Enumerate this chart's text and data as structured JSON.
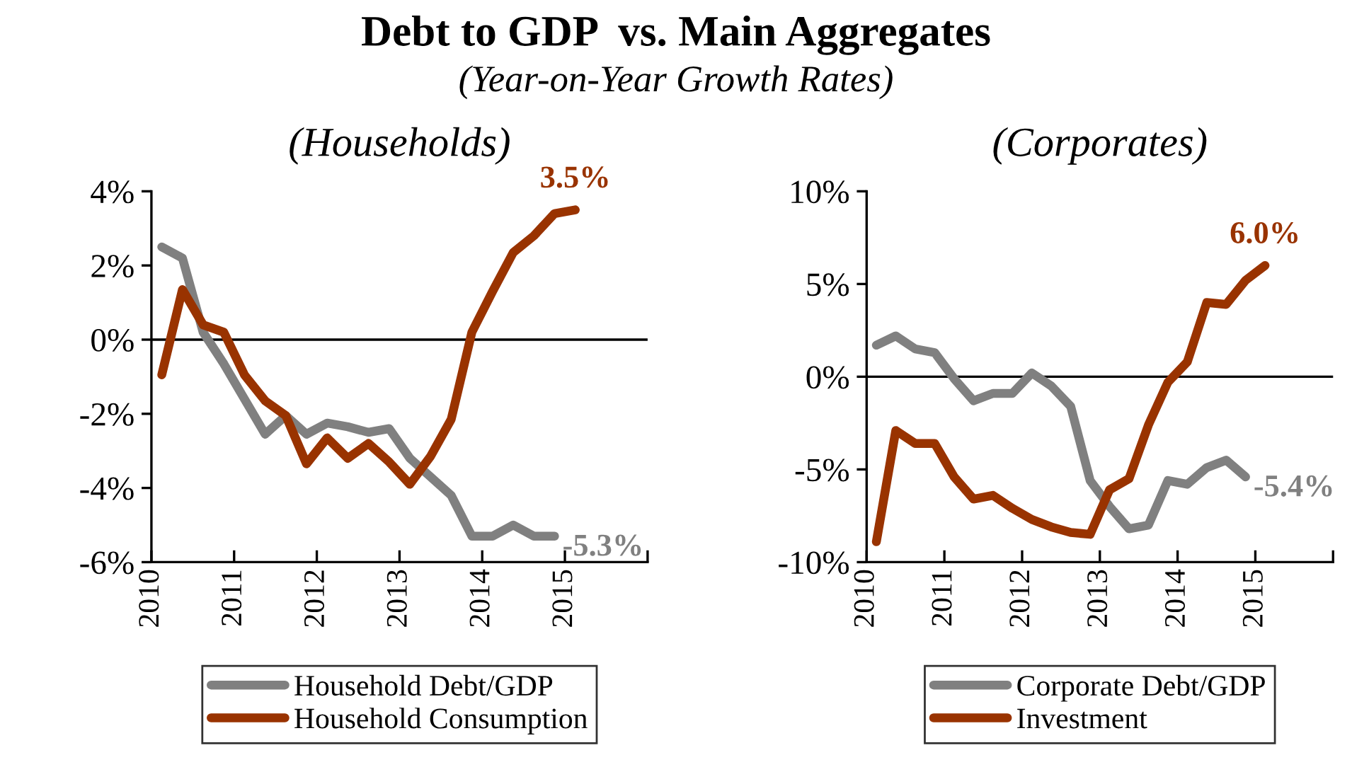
{
  "chart_data": [
    {
      "type": "line",
      "title": "(Households)",
      "annotations": [
        "Debt to GDP  vs. Main Aggregates",
        "(Year-on-Year Growth Rates)"
      ],
      "xlim": [
        2010,
        2016
      ],
      "xticks": [
        2010,
        2011,
        2012,
        2013,
        2014,
        2015,
        {
          "value": 2016,
          "label": null
        }
      ],
      "ylim": [
        -6,
        4
      ],
      "yticks": [
        {
          "value": -6,
          "label": "-6%"
        },
        {
          "value": -4,
          "label": "-4%"
        },
        {
          "value": -2,
          "label": "-2%"
        },
        {
          "value": 0,
          "label": "0%"
        },
        {
          "value": 2,
          "label": "2%"
        },
        {
          "value": 4,
          "label": "4%"
        }
      ],
      "ref_lines": [
        {
          "axis": "y",
          "value": 0,
          "color": "#000000"
        }
      ],
      "legend": "bottom",
      "grid": false,
      "marker": "none",
      "line_style": "solid",
      "series": [
        {
          "name": "Household Debt/GDP",
          "color": "#808080",
          "x": [
            2010.125,
            2010.375,
            2010.625,
            2010.875,
            2011.125,
            2011.375,
            2011.625,
            2011.875,
            2012.125,
            2012.375,
            2012.625,
            2012.875,
            2013.125,
            2013.375,
            2013.625,
            2013.875,
            2014.125,
            2014.375,
            2014.625,
            2014.875
          ],
          "values": [
            2.5,
            2.2,
            0.2,
            -0.65,
            -1.6,
            -2.55,
            -2.05,
            -2.55,
            -2.25,
            -2.35,
            -2.5,
            -2.4,
            -3.2,
            -3.7,
            -4.2,
            -5.3,
            -5.3,
            -5.0,
            -5.3,
            -5.3
          ],
          "value_labels": [
            null,
            null,
            null,
            null,
            null,
            null,
            null,
            null,
            null,
            null,
            null,
            null,
            null,
            null,
            null,
            null,
            null,
            null,
            null,
            "-5.3%"
          ]
        },
        {
          "name": "Household Consumption",
          "color": "#993300",
          "x": [
            2010.125,
            2010.375,
            2010.625,
            2010.875,
            2011.125,
            2011.375,
            2011.625,
            2011.875,
            2012.125,
            2012.375,
            2012.625,
            2012.875,
            2013.125,
            2013.375,
            2013.625,
            2013.875,
            2014.125,
            2014.375,
            2014.625,
            2014.875,
            2015.125
          ],
          "values": [
            -0.95,
            1.35,
            0.4,
            0.2,
            -0.95,
            -1.65,
            -2.05,
            -3.35,
            -2.65,
            -3.2,
            -2.8,
            -3.3,
            -3.9,
            -3.15,
            -2.15,
            0.2,
            1.3,
            2.35,
            2.8,
            3.4,
            3.5
          ],
          "value_labels": [
            null,
            null,
            null,
            null,
            null,
            null,
            null,
            null,
            null,
            null,
            null,
            null,
            null,
            null,
            null,
            null,
            null,
            null,
            null,
            null,
            "3.5%"
          ]
        }
      ]
    },
    {
      "type": "line",
      "title": "(Corporates)",
      "xlim": [
        2010,
        2016
      ],
      "xticks": [
        2010,
        2011,
        2012,
        2013,
        2014,
        2015,
        {
          "value": 2016,
          "label": null
        }
      ],
      "ylim": [
        -10,
        10
      ],
      "yticks": [
        {
          "value": -10,
          "label": "-10%"
        },
        {
          "value": -5,
          "label": "-5%"
        },
        {
          "value": 0,
          "label": "0%"
        },
        {
          "value": 5,
          "label": "5%"
        },
        {
          "value": 10,
          "label": "10%"
        }
      ],
      "ref_lines": [
        {
          "axis": "y",
          "value": 0,
          "color": "#000000"
        }
      ],
      "legend": "bottom",
      "grid": false,
      "marker": "none",
      "line_style": "solid",
      "series": [
        {
          "name": "Corporate Debt/GDP",
          "color": "#808080",
          "x": [
            2010.125,
            2010.375,
            2010.625,
            2010.875,
            2011.125,
            2011.375,
            2011.625,
            2011.875,
            2012.125,
            2012.375,
            2012.625,
            2012.875,
            2013.125,
            2013.375,
            2013.625,
            2013.875,
            2014.125,
            2014.375,
            2014.625,
            2014.875
          ],
          "values": [
            1.7,
            2.2,
            1.5,
            1.3,
            -0.1,
            -1.3,
            -0.9,
            -0.9,
            0.2,
            -0.5,
            -1.6,
            -5.6,
            -7.0,
            -8.2,
            -8.0,
            -5.6,
            -5.8,
            -4.9,
            -4.5,
            -5.4
          ],
          "value_labels": [
            null,
            null,
            null,
            null,
            null,
            null,
            null,
            null,
            null,
            null,
            null,
            null,
            null,
            null,
            null,
            null,
            null,
            null,
            null,
            "-5.4%"
          ]
        },
        {
          "name": "Investment",
          "color": "#993300",
          "x": [
            2010.125,
            2010.375,
            2010.625,
            2010.875,
            2011.125,
            2011.375,
            2011.625,
            2011.875,
            2012.125,
            2012.375,
            2012.625,
            2012.875,
            2013.125,
            2013.375,
            2013.625,
            2013.875,
            2014.125,
            2014.375,
            2014.625,
            2014.875,
            2015.125
          ],
          "values": [
            -8.9,
            -2.9,
            -3.6,
            -3.6,
            -5.4,
            -6.6,
            -6.4,
            -7.1,
            -7.7,
            -8.1,
            -8.4,
            -8.5,
            -6.1,
            -5.5,
            -2.6,
            -0.3,
            0.8,
            4.0,
            3.9,
            5.2,
            6.0
          ],
          "value_labels": [
            null,
            null,
            null,
            null,
            null,
            null,
            null,
            null,
            null,
            null,
            null,
            null,
            null,
            null,
            null,
            null,
            null,
            null,
            null,
            null,
            "6.0%"
          ]
        }
      ]
    }
  ]
}
